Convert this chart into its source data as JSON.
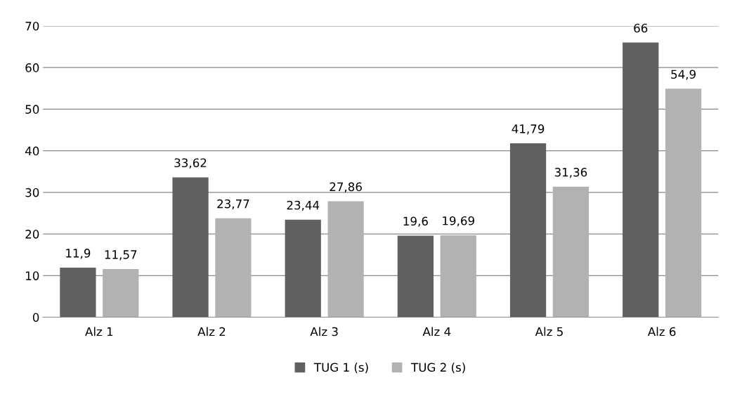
{
  "chart_data": {
    "type": "bar",
    "categories": [
      "Alz 1",
      "Alz 2",
      "Alz 3",
      "Alz 4",
      "Alz 5",
      "Alz 6"
    ],
    "series": [
      {
        "name": "TUG 1 (s)",
        "color": "#606060",
        "values": [
          11.9,
          33.62,
          23.44,
          19.6,
          41.79,
          66
        ],
        "value_labels": [
          "11,9",
          "33,62",
          "23,44",
          "19,6",
          "41,79",
          "66"
        ]
      },
      {
        "name": "TUG 2 (s)",
        "color": "#b2b2b2",
        "values": [
          11.57,
          23.77,
          27.86,
          19.69,
          31.36,
          54.9
        ],
        "value_labels": [
          "11,57",
          "23,77",
          "27,86",
          "19,69",
          "31,36",
          "54,9"
        ]
      }
    ],
    "ylim": [
      0,
      70
    ],
    "yticks": [
      0,
      10,
      20,
      30,
      40,
      50,
      60,
      70
    ],
    "grid": "y",
    "legend": "bottom"
  }
}
